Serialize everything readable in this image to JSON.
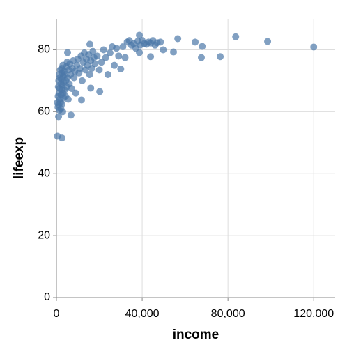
{
  "chart_data": {
    "type": "scatter",
    "x_label": "income",
    "y_label": "lifeexp",
    "x": [
      500,
      700,
      800,
      900,
      1000,
      1100,
      1200,
      1300,
      1400,
      1500,
      1600,
      1700,
      1800,
      1900,
      2000,
      2100,
      2200,
      2300,
      2400,
      2500,
      2600,
      2700,
      2800,
      2900,
      3000,
      3100,
      3200,
      3300,
      3400,
      3600,
      3800,
      4000,
      4200,
      4400,
      4600,
      4800,
      5000,
      5200,
      5500,
      5800,
      6000,
      6300,
      6600,
      7000,
      7400,
      7800,
      8200,
      8600,
      9000,
      9500,
      10000,
      10500,
      11000,
      11500,
      12000,
      12500,
      13000,
      13500,
      14000,
      14500,
      15000,
      15500,
      16000,
      16500,
      17000,
      17500,
      18000,
      19000,
      20000,
      21000,
      22000,
      23000,
      24000,
      25000,
      26000,
      27000,
      28000,
      29000,
      30000,
      31000,
      32000,
      33000,
      34000,
      35000,
      36000,
      37000,
      38000,
      39000,
      40000,
      41000,
      42000,
      43000,
      44000,
      45000,
      46000,
      47000,
      120000,
      98500,
      83600,
      76400,
      68000,
      67600,
      64700,
      56600,
      54600,
      49800,
      48500,
      43900,
      38700,
      38700,
      500,
      2600,
      6800,
      1000,
      5200,
      15600,
      20200,
      16000,
      11700
    ],
    "values": [
      63,
      61.5,
      65,
      68,
      62.3,
      70,
      66,
      72,
      60.5,
      64,
      67.5,
      71,
      73.5,
      63,
      69,
      61,
      65.5,
      70.5,
      74,
      67,
      62.5,
      72.5,
      68.5,
      60,
      75,
      66,
      71.5,
      64.5,
      69.5,
      73,
      67,
      72,
      65,
      70,
      74.5,
      68,
      76,
      71,
      64,
      73.5,
      69,
      75.5,
      72,
      67.5,
      74,
      76.5,
      71,
      73,
      66,
      75,
      77,
      72.5,
      74,
      78,
      70,
      76,
      79,
      73.5,
      77,
      75,
      78.5,
      72,
      76.5,
      74,
      79.5,
      77.5,
      75.5,
      78,
      73.5,
      76,
      80,
      77.5,
      72,
      79,
      81,
      75,
      80.5,
      78,
      73.8,
      81,
      77.5,
      82.5,
      83,
      81.5,
      82,
      80.5,
      82.8,
      81.5,
      83,
      82,
      81.8,
      82.5,
      82.2,
      83,
      81.5,
      82.3,
      80.9,
      82.7,
      84.2,
      77.8,
      81.1,
      77.5,
      82.5,
      83.6,
      79.3,
      80,
      82.5,
      77.8,
      79.1,
      84.7,
      52.1,
      51.5,
      58.9,
      58.4,
      79.1,
      81.8,
      66.5,
      67.6,
      63.8
    ],
    "color": "#4c78a8",
    "xlim": [
      0,
      130000
    ],
    "ylim": [
      0,
      90
    ],
    "xticks": [
      0,
      {
        "value": 40000,
        "label": "40,000"
      },
      {
        "value": 80000,
        "label": "80,000"
      },
      {
        "value": 120000,
        "label": "120,000"
      }
    ],
    "yticks": [
      0,
      20,
      40,
      60,
      80
    ],
    "grid": true
  }
}
